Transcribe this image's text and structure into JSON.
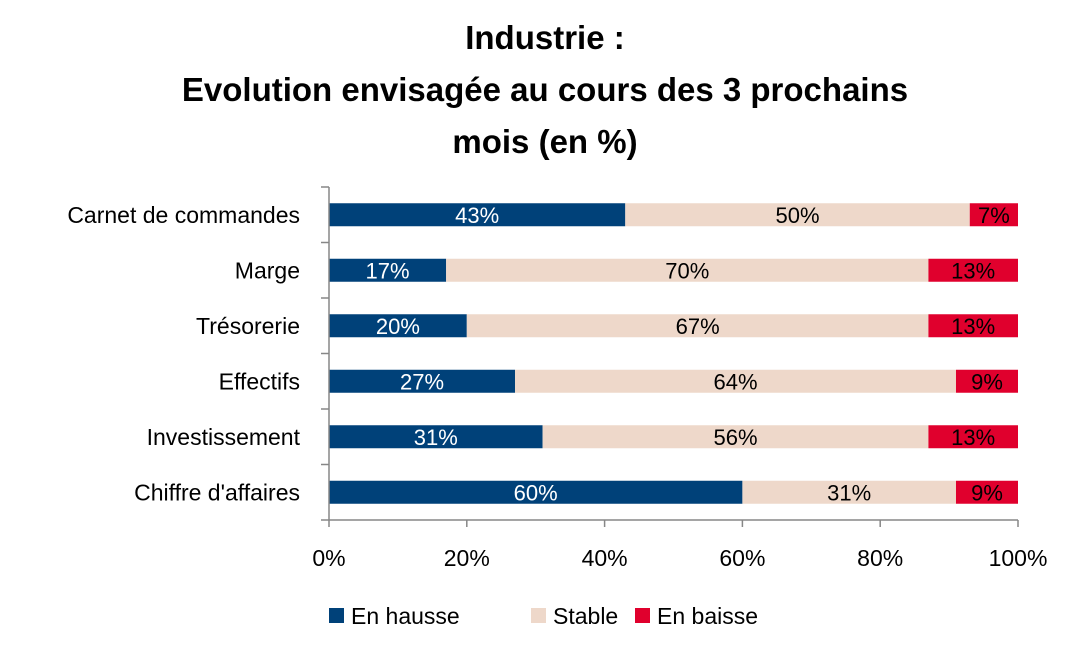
{
  "chart_data": {
    "type": "bar",
    "orientation": "horizontal",
    "stacked": "percent",
    "title_lines": [
      "Industrie :",
      "Evolution envisagée au cours des 3 prochains",
      "mois (en %)"
    ],
    "categories": [
      "Carnet de commandes",
      "Marge",
      "Trésorerie",
      "Effectifs",
      "Investissement",
      "Chiffre d'affaires"
    ],
    "series": [
      {
        "name": "En hausse",
        "color": "#004179",
        "label_color": "#ffffff",
        "values": [
          43,
          17,
          20,
          27,
          31,
          60
        ],
        "labels": [
          "43%",
          "17%",
          "20%",
          "27%",
          "31%",
          "60%"
        ]
      },
      {
        "name": "Stable",
        "color": "#eed8ca",
        "label_color": "#000000",
        "values": [
          50,
          70,
          67,
          64,
          56,
          31
        ],
        "labels": [
          "50%",
          "70%",
          "67%",
          "64%",
          "56%",
          "31%"
        ]
      },
      {
        "name": "En baisse",
        "color": "#e0002d",
        "label_color": "#000000",
        "values": [
          7,
          13,
          13,
          9,
          13,
          9
        ],
        "labels": [
          "7%",
          "13%",
          "13%",
          "9%",
          "13%",
          "9%"
        ]
      }
    ],
    "xlim": [
      0,
      100
    ],
    "x_ticks": [
      "0%",
      "20%",
      "40%",
      "60%",
      "80%",
      "100%"
    ],
    "grid": false,
    "legend_position": "bottom"
  }
}
